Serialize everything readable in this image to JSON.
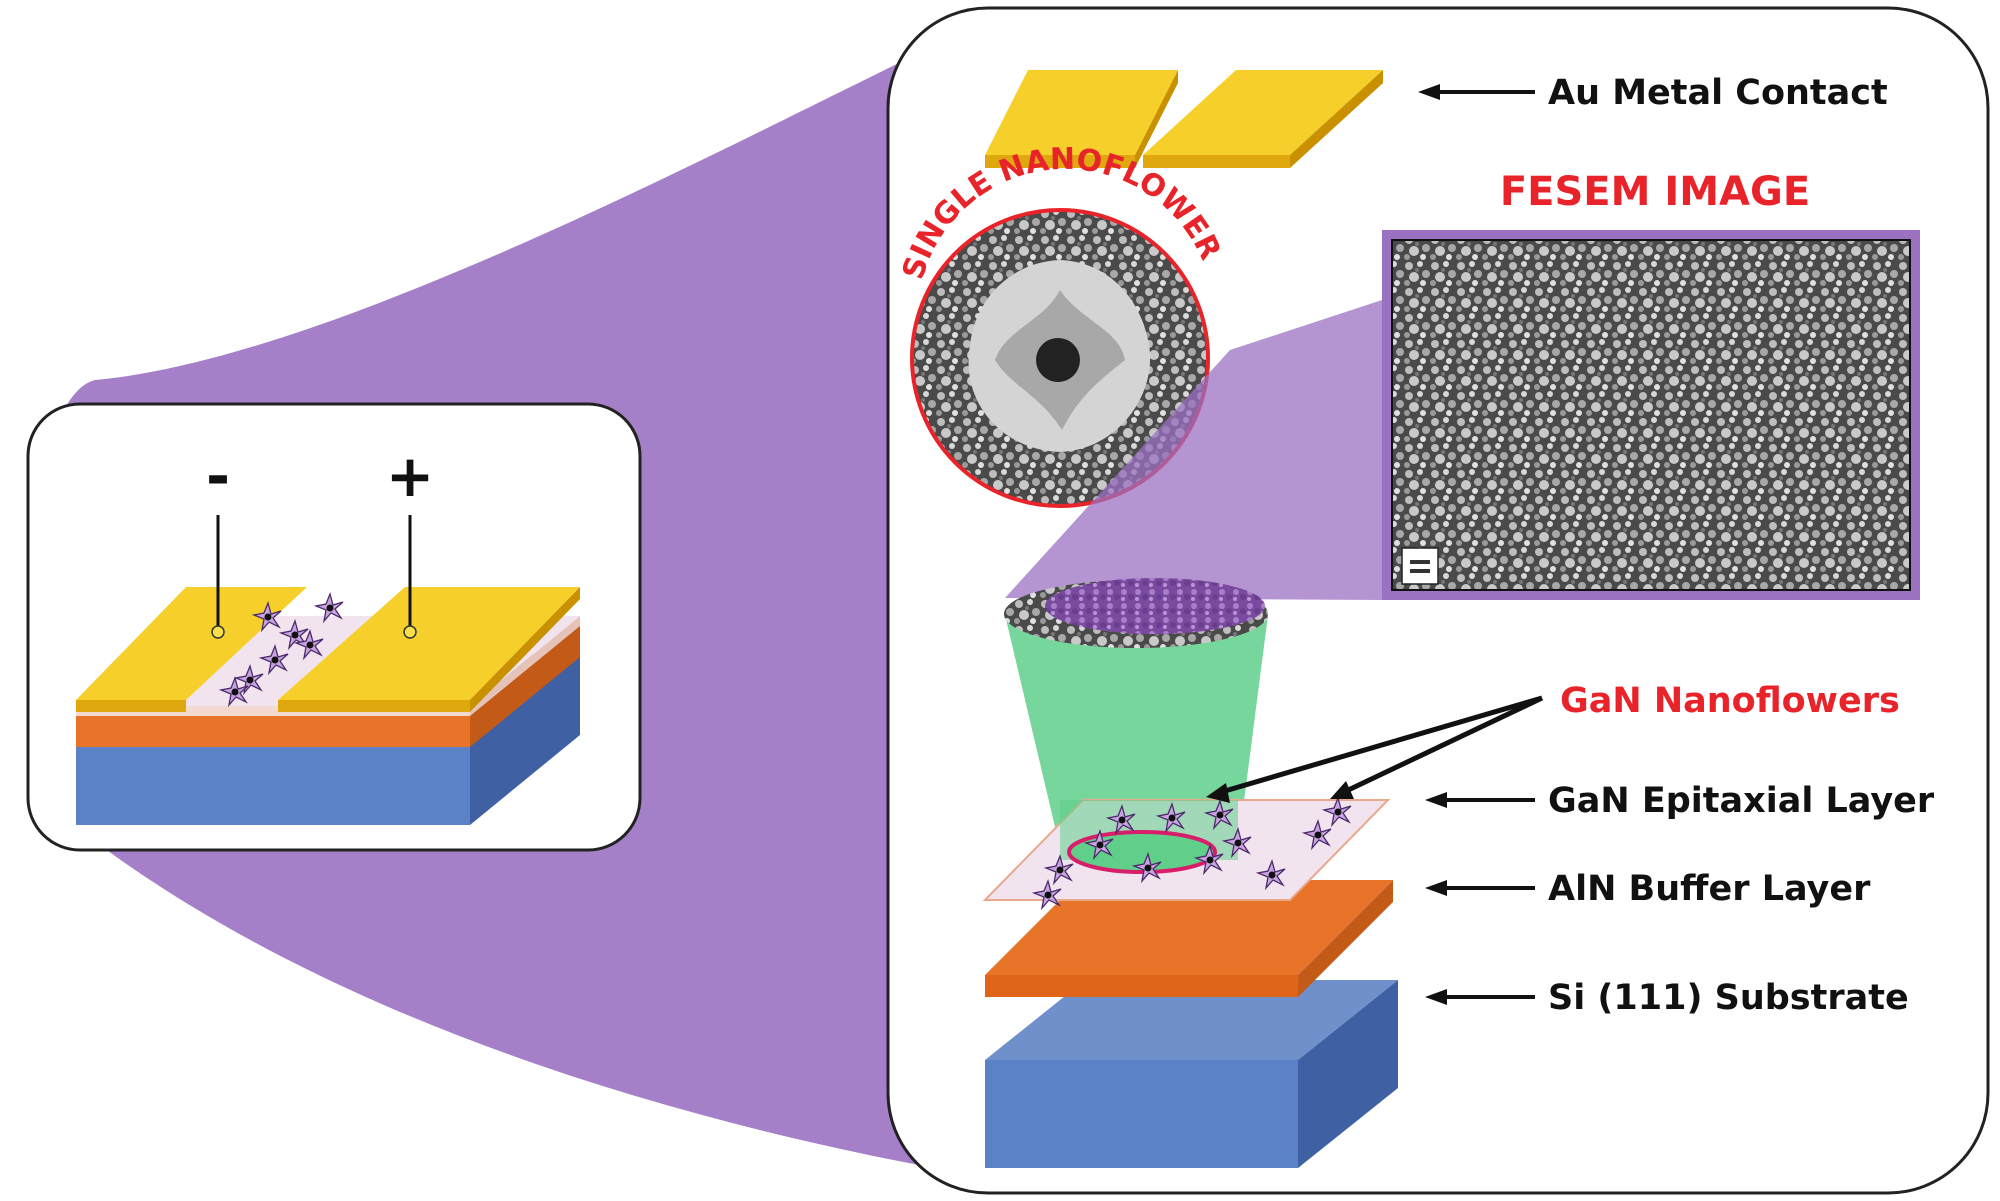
{
  "device": {
    "minus_sign": "-",
    "plus_sign": "+"
  },
  "labels": {
    "au_contact": "Au Metal Contact",
    "fesem_title": "FESEM IMAGE",
    "single_nanoflower": "SINGLE NANOFLOWER",
    "gan_nanoflowers": "GaN Nanoflowers",
    "gan_epitaxial": "GaN Epitaxial Layer",
    "aln_buffer": "AlN Buffer Layer",
    "si_substrate": "Si (111) Substrate"
  },
  "colors": {
    "gold": "#f5c518",
    "aln_orange": "#e8742a",
    "si_blue": "#5b82c6",
    "purple_beam": "#9b72c2",
    "label_red": "#e8232a",
    "green_cone": "#5fcf8a"
  }
}
